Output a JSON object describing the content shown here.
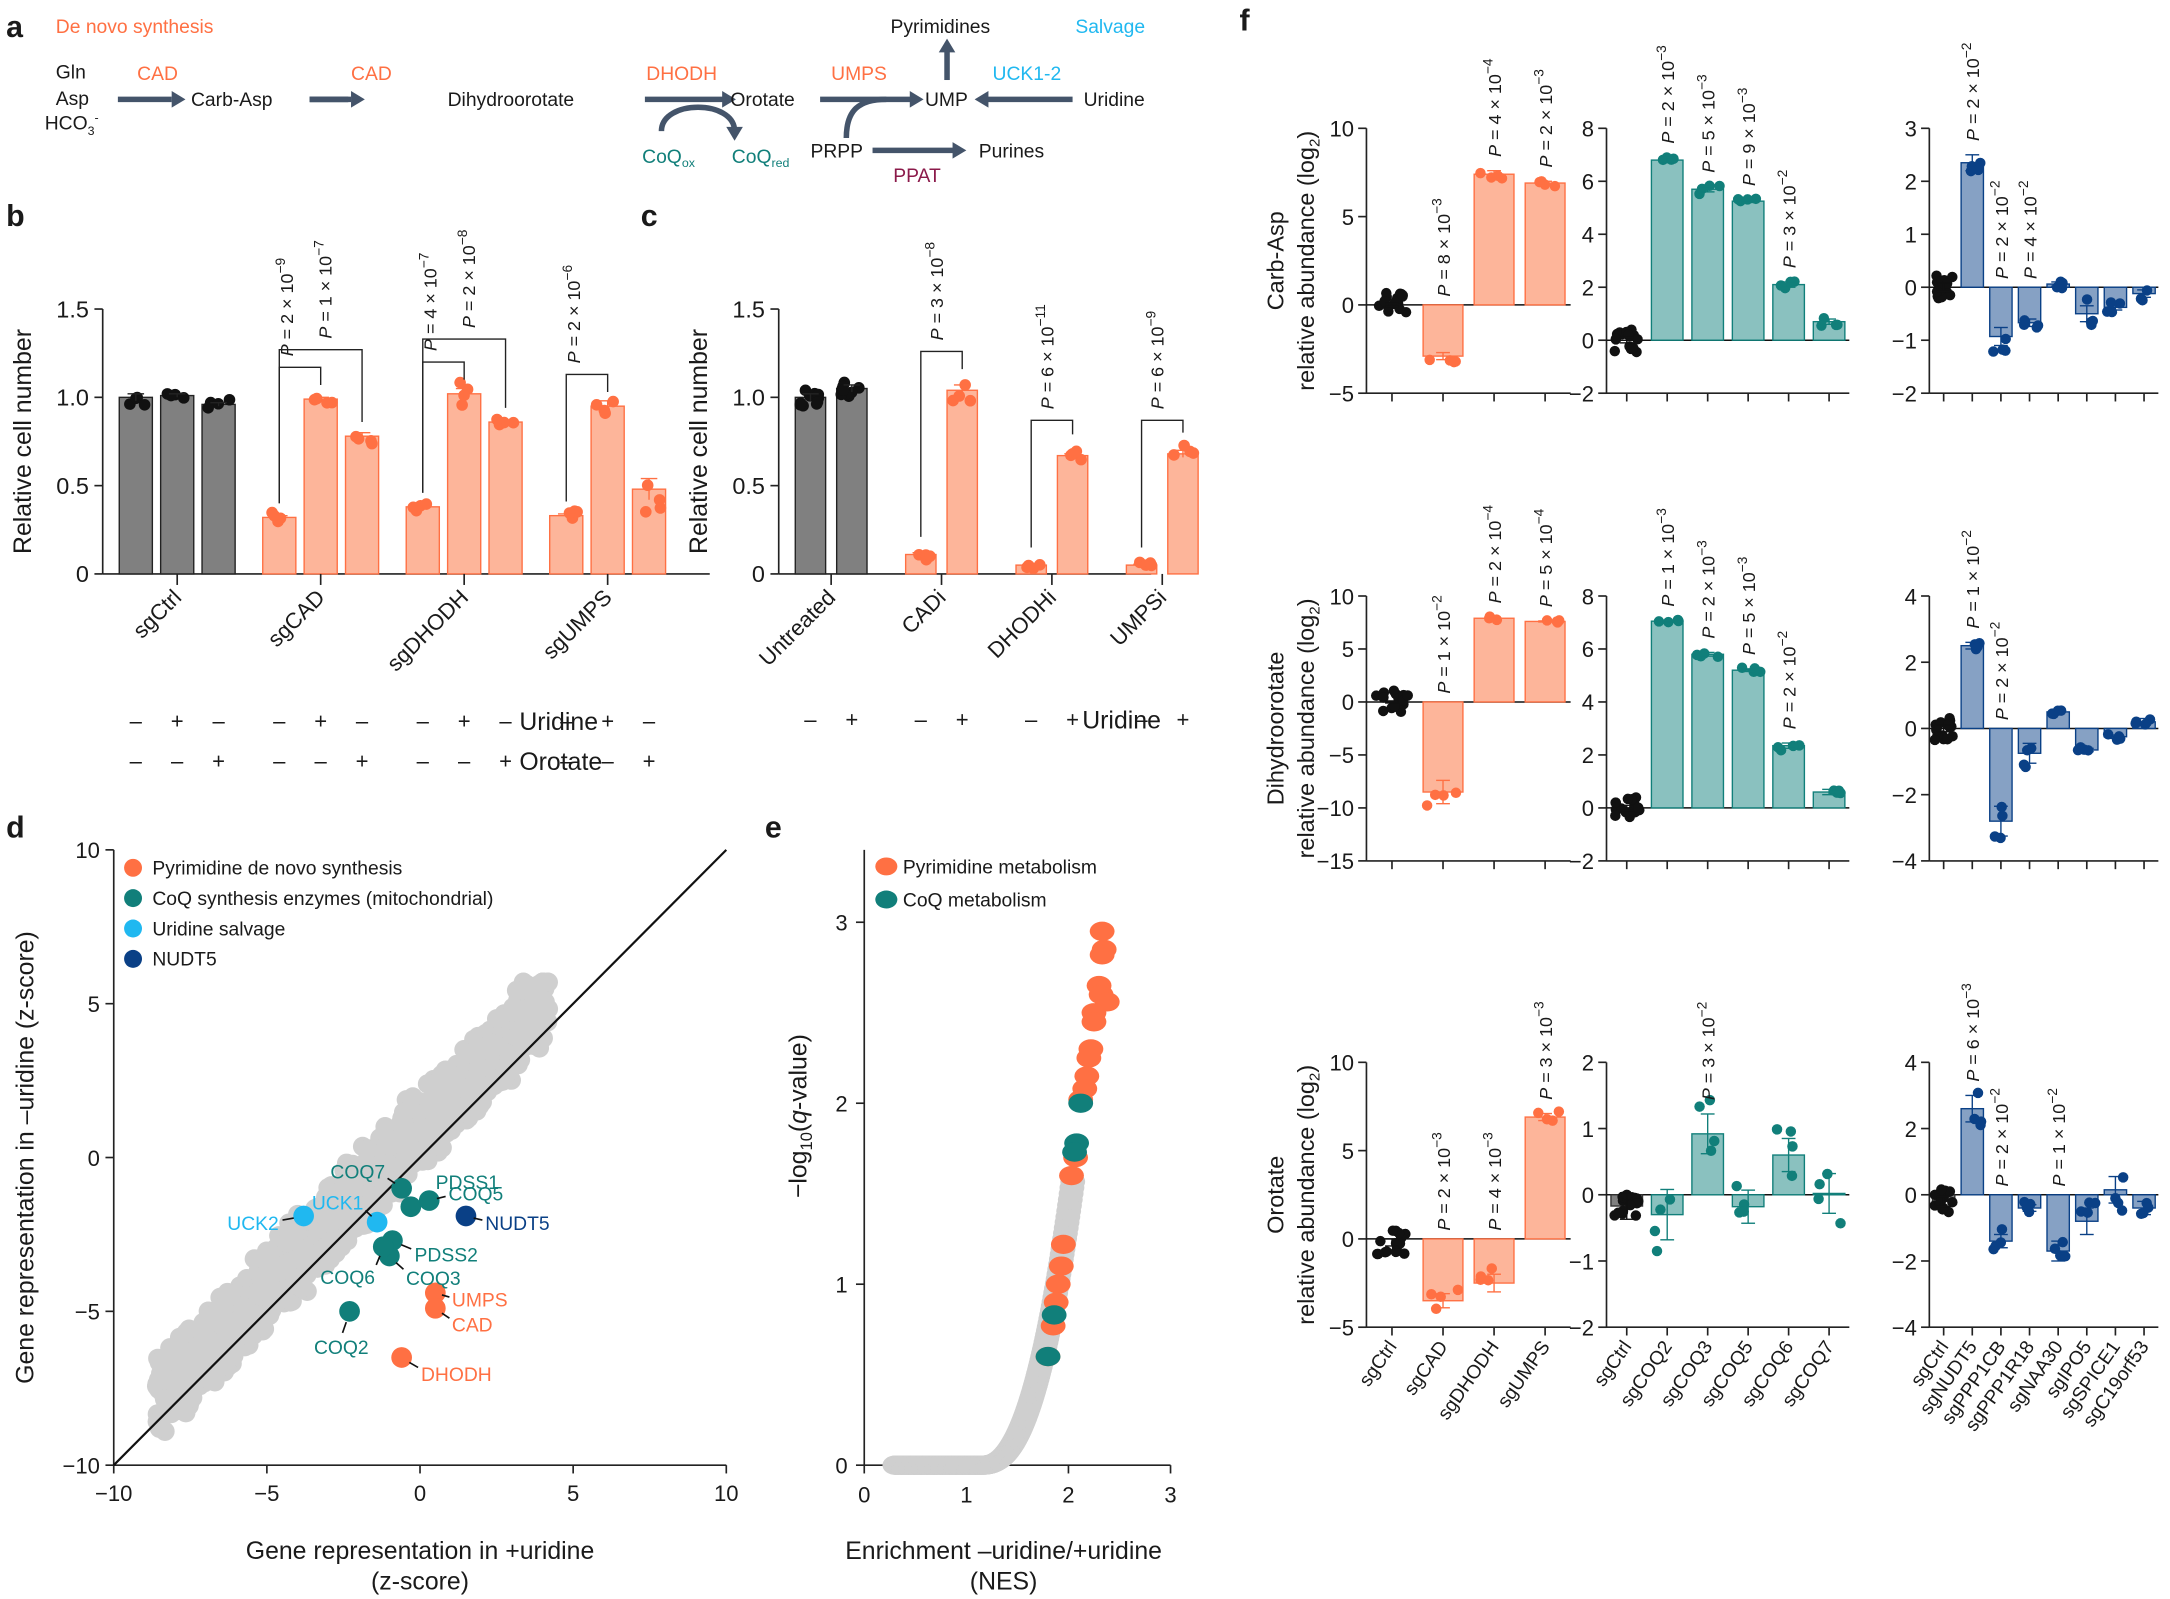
{
  "colors": {
    "orange": "#ff7043",
    "orange_fill": "#fdb59a",
    "teal": "#117f7a",
    "teal_fill": "#8ac1bf",
    "cyan": "#20b8f0",
    "navy": "#0a4086",
    "navy_fill": "#86a1c4",
    "gray_bar": "#808080",
    "gray_point": "#cfcfcf",
    "arrow": "#44546a",
    "ppat": "#8b1a4a"
  },
  "panel_a": {
    "letter": "a",
    "de_novo_label": "De novo synthesis",
    "salvage_label": "Salvage",
    "substrates": [
      "Gln",
      "Asp",
      "HCO3-"
    ],
    "metabolites": {
      "carb_asp": "Carb-Asp",
      "dihydroorotate": "Dihydroorotate",
      "orotate": "Orotate",
      "ump": "UMP",
      "uridine": "Uridine",
      "pyrimidines": "Pyrimidines",
      "prpp": "PRPP",
      "purines": "Purines",
      "coq_ox": "CoQox",
      "coq_red": "CoQred"
    },
    "enzymes": {
      "cad1": "CAD",
      "cad2": "CAD",
      "dhodh": "DHODH",
      "umps": "UMPS",
      "uck": "UCK1-2",
      "ppat": "PPAT"
    }
  },
  "chart_data": [
    {
      "id": "b",
      "type": "bar",
      "title": "",
      "ylabel": "Relative cell number",
      "ylim": [
        0,
        1.5
      ],
      "yticks": [
        "0",
        "0.5",
        "1.0",
        "1.5"
      ],
      "groups": [
        "sgCtrl",
        "sgCAD",
        "sgDHODH",
        "sgUMPS"
      ],
      "conditions_uridine": [
        "–",
        "+",
        "–"
      ],
      "conditions_orotate": [
        "–",
        "–",
        "+"
      ],
      "condition_labels": [
        "Uridine",
        "Orotate"
      ],
      "series": [
        {
          "name": "sgCtrl",
          "values": [
            1.0,
            1.01,
            0.96
          ],
          "errors": [
            0.02,
            0.01,
            0.01
          ],
          "color": "gray"
        },
        {
          "name": "sgCAD",
          "values": [
            0.32,
            0.99,
            0.78
          ],
          "errors": [
            0.01,
            0.01,
            0.02
          ],
          "color": "orange"
        },
        {
          "name": "sgDHODH",
          "values": [
            0.38,
            1.02,
            0.86
          ],
          "errors": [
            0.01,
            0.03,
            0.01
          ],
          "color": "orange"
        },
        {
          "name": "sgUMPS",
          "values": [
            0.33,
            0.95,
            0.48
          ],
          "errors": [
            0.01,
            0.03,
            0.06
          ],
          "color": "orange"
        }
      ],
      "pvalues": [
        {
          "group": 1,
          "from": 0,
          "to": 1,
          "text": "P = 2 × 10",
          "exp": "−9"
        },
        {
          "group": 1,
          "from": 0,
          "to": 2,
          "text": "P = 1 × 10",
          "exp": "−7"
        },
        {
          "group": 2,
          "from": 0,
          "to": 1,
          "text": "P = 4 × 10",
          "exp": "−7"
        },
        {
          "group": 2,
          "from": 0,
          "to": 2,
          "text": "P = 2 × 10",
          "exp": "−8"
        },
        {
          "group": 3,
          "from": 0,
          "to": 1,
          "text": "P = 2 × 10",
          "exp": "−6"
        }
      ]
    },
    {
      "id": "c",
      "type": "bar",
      "ylabel": "Relative cell number",
      "ylim": [
        0,
        1.5
      ],
      "yticks": [
        "0",
        "0.5",
        "1.0",
        "1.5"
      ],
      "groups": [
        "Untreated",
        "CADi",
        "DHODHi",
        "UMPSi"
      ],
      "conditions_uridine": [
        "–",
        "+"
      ],
      "condition_labels": [
        "Uridine"
      ],
      "series": [
        {
          "name": "Untreated",
          "values": [
            1.0,
            1.05
          ],
          "errors": [
            0.02,
            0.02
          ],
          "color": "gray"
        },
        {
          "name": "CADi",
          "values": [
            0.11,
            1.04
          ],
          "errors": [
            0.01,
            0.03
          ],
          "color": "orange"
        },
        {
          "name": "DHODHi",
          "values": [
            0.05,
            0.67
          ],
          "errors": [
            0.005,
            0.01
          ],
          "color": "orange"
        },
        {
          "name": "UMPSi",
          "values": [
            0.05,
            0.68
          ],
          "errors": [
            0.005,
            0.02
          ],
          "color": "orange"
        }
      ],
      "pvalues": [
        {
          "group": 1,
          "text": "P = 3 × 10",
          "exp": "−8"
        },
        {
          "group": 2,
          "text": "P = 6 × 10",
          "exp": "−11"
        },
        {
          "group": 3,
          "text": "P = 6 × 10",
          "exp": "−9"
        }
      ]
    },
    {
      "id": "d",
      "type": "scatter",
      "xlabel": "Gene representation in +uridine",
      "xlabel2": "(z-score)",
      "ylabel": "Gene representation in –uridine (z-score)",
      "xlim": [
        -10,
        10
      ],
      "ylim": [
        -10,
        10
      ],
      "xticks": [
        "−10",
        "−5",
        "0",
        "5",
        "10"
      ],
      "yticks": [
        "−10",
        "−5",
        "0",
        "5",
        "10"
      ],
      "legend": [
        {
          "label": "Pyrimidine de novo synthesis",
          "color": "orange"
        },
        {
          "label": "CoQ synthesis enzymes (mitochondrial)",
          "color": "teal"
        },
        {
          "label": "Uridine salvage",
          "color": "cyan"
        },
        {
          "label": "NUDT5",
          "color": "navy"
        }
      ],
      "legend_position": "top-left",
      "highlighted": [
        {
          "gene": "UMPS",
          "x": 0.5,
          "y": -4.4,
          "group": "orange"
        },
        {
          "gene": "CAD",
          "x": 0.5,
          "y": -4.9,
          "group": "orange"
        },
        {
          "gene": "DHODH",
          "x": -0.6,
          "y": -6.5,
          "group": "orange"
        },
        {
          "gene": "COQ7",
          "x": -0.6,
          "y": -1.0,
          "group": "teal"
        },
        {
          "gene": "PDSS1",
          "x": -0.3,
          "y": -1.6,
          "group": "teal"
        },
        {
          "gene": "COQ5",
          "x": 0.3,
          "y": -1.4,
          "group": "teal"
        },
        {
          "gene": "PDSS2",
          "x": -0.9,
          "y": -2.7,
          "group": "teal"
        },
        {
          "gene": "COQ3",
          "x": -1.0,
          "y": -3.2,
          "group": "teal"
        },
        {
          "gene": "COQ6",
          "x": -1.2,
          "y": -2.9,
          "group": "teal"
        },
        {
          "gene": "COQ2",
          "x": -2.3,
          "y": -5.0,
          "group": "teal"
        },
        {
          "gene": "UCK1",
          "x": -1.4,
          "y": -2.1,
          "group": "cyan"
        },
        {
          "gene": "UCK2",
          "x": -3.8,
          "y": -1.9,
          "group": "cyan"
        },
        {
          "gene": "NUDT5",
          "x": 1.5,
          "y": -1.9,
          "group": "navy"
        }
      ],
      "diagonal": "y = x"
    },
    {
      "id": "e",
      "type": "scatter",
      "xlabel": "Enrichment –uridine/+uridine",
      "xlabel2": "(NES)",
      "ylabel": "−log10(q-value)",
      "xlim": [
        0,
        3
      ],
      "ylim": [
        0,
        3.4
      ],
      "xticks": [
        "0",
        "1",
        "2",
        "3"
      ],
      "yticks": [
        "0",
        "1",
        "2",
        "3"
      ],
      "legend": [
        {
          "label": "Pyrimidine metabolism",
          "color": "orange"
        },
        {
          "label": "CoQ metabolism",
          "color": "teal"
        }
      ],
      "legend_position": "top-left",
      "orange_points": [
        [
          2.33,
          2.95
        ],
        [
          2.35,
          2.85
        ],
        [
          2.33,
          2.82
        ],
        [
          2.3,
          2.65
        ],
        [
          2.32,
          2.6
        ],
        [
          2.38,
          2.56
        ],
        [
          2.25,
          2.5
        ],
        [
          2.25,
          2.45
        ],
        [
          2.22,
          2.3
        ],
        [
          2.2,
          2.25
        ],
        [
          2.18,
          2.15
        ],
        [
          2.16,
          2.08
        ],
        [
          2.12,
          2.02
        ],
        [
          2.07,
          1.7
        ],
        [
          2.03,
          1.6
        ],
        [
          1.95,
          1.22
        ],
        [
          1.93,
          1.1
        ],
        [
          1.9,
          1.0
        ],
        [
          1.88,
          0.9
        ],
        [
          1.85,
          0.77
        ],
        [
          1.8,
          0.6
        ]
      ],
      "teal_points": [
        [
          2.12,
          2.0
        ],
        [
          2.08,
          1.78
        ],
        [
          2.06,
          1.73
        ],
        [
          1.86,
          0.83
        ],
        [
          1.8,
          0.6
        ]
      ]
    },
    {
      "id": "f",
      "type": "bar",
      "rows": [
        {
          "ylabel": "Carb-Asp",
          "ylabel2": "relative abundance (log2)",
          "panels": [
            {
              "ylim": [
                -5,
                10
              ],
              "yticks": [
                -5,
                0,
                5,
                10
              ],
              "color": "orange",
              "categories": [
                "sgCtrl",
                "sgCAD",
                "sgDHODH",
                "sgUMPS"
              ],
              "values": [
                0,
                -2.9,
                7.4,
                6.9
              ],
              "errors": [
                0.1,
                0.2,
                0.2,
                0.1
              ],
              "pvalues": [
                "",
                "P = 8 × 10|−3",
                "P = 4 × 10|−4",
                "P = 2 × 10|−3"
              ]
            },
            {
              "ylim": [
                -2,
                8
              ],
              "yticks": [
                -2,
                0,
                2,
                4,
                6,
                8
              ],
              "color": "teal",
              "categories": [
                "sgCtrl",
                "sgCOQ2",
                "sgCOQ3",
                "sgCOQ5",
                "sgCOQ6",
                "sgCOQ7"
              ],
              "values": [
                0,
                6.8,
                5.7,
                5.25,
                2.1,
                0.7
              ],
              "errors": [
                0.1,
                0.1,
                0.1,
                0.05,
                0.1,
                0.1
              ],
              "pvalues": [
                "",
                "P = 2 × 10|−3",
                "P = 5 × 10|−3",
                "P = 9 × 10|−3",
                "P = 3 × 10|−2",
                ""
              ]
            },
            {
              "ylim": [
                -2,
                3
              ],
              "yticks": [
                -2,
                -1,
                0,
                1,
                2,
                3
              ],
              "color": "navy",
              "categories": [
                "sgCtrl",
                "sgNUDT5",
                "sgPPP1CB",
                "sgPPP1R18",
                "sgNAA30",
                "sgIPO5",
                "sgSPICE1",
                "sgC19orf53"
              ],
              "values": [
                0,
                2.35,
                -0.93,
                -0.67,
                0.06,
                -0.5,
                -0.38,
                -0.12
              ],
              "errors": [
                0.08,
                0.15,
                0.17,
                0.07,
                0.04,
                0.15,
                0.05,
                0.07
              ],
              "pvalues": [
                "",
                "P = 2 × 10|−2",
                "P = 2 × 10|−2",
                "P = 4 × 10|−2",
                "",
                "",
                "",
                ""
              ]
            }
          ]
        },
        {
          "ylabel": "Dihydroorotate",
          "ylabel2": "relative abundance (log2)",
          "panels": [
            {
              "ylim": [
                -15,
                10
              ],
              "yticks": [
                -15,
                -10,
                -5,
                0,
                5,
                10
              ],
              "color": "orange",
              "categories": [
                "sgCtrl",
                "sgCAD",
                "sgDHODH",
                "sgUMPS"
              ],
              "values": [
                0,
                -8.5,
                7.9,
                7.6
              ],
              "errors": [
                0.1,
                1.1,
                0.1,
                0.05
              ],
              "pvalues": [
                "",
                "P = 1 × 10|−2",
                "P = 2 × 10|−4",
                "P = 5 × 10|−4"
              ]
            },
            {
              "ylim": [
                -2,
                8
              ],
              "yticks": [
                -2,
                0,
                2,
                4,
                6,
                8
              ],
              "color": "teal",
              "categories": [
                "sgCtrl",
                "sgCOQ2",
                "sgCOQ3",
                "sgCOQ5",
                "sgCOQ6",
                "sgCOQ7"
              ],
              "values": [
                0,
                7.05,
                5.8,
                5.2,
                2.35,
                0.6
              ],
              "errors": [
                0.1,
                0.03,
                0.07,
                0.05,
                0.1,
                0.1
              ],
              "pvalues": [
                "",
                "P = 1 × 10|−3",
                "P = 2 × 10|−3",
                "P = 5 × 10|−3",
                "P = 2 × 10|−2",
                ""
              ]
            },
            {
              "ylim": [
                -4,
                4
              ],
              "yticks": [
                -4,
                -2,
                0,
                2,
                4
              ],
              "color": "navy",
              "categories": [
                "sgCtrl",
                "sgNUDT5",
                "sgPPP1CB",
                "sgPPP1R18",
                "sgNAA30",
                "sgIPO5",
                "sgSPICE1",
                "sgC19orf53"
              ],
              "values": [
                0,
                2.5,
                -2.8,
                -0.75,
                0.5,
                -0.65,
                -0.25,
                0.2
              ],
              "errors": [
                0.1,
                0.1,
                0.45,
                0.3,
                0.05,
                0.05,
                0.05,
                0.1
              ],
              "pvalues": [
                "",
                "P = 1 × 10|−2",
                "P = 2 × 10|−2",
                "",
                "",
                "",
                "",
                ""
              ]
            }
          ]
        },
        {
          "ylabel": "Orotate",
          "ylabel2": "relative abundance (log2)",
          "panels": [
            {
              "ylim": [
                -5,
                10
              ],
              "yticks": [
                -5,
                0,
                5,
                10
              ],
              "color": "orange",
              "categories": [
                "sgCtrl",
                "sgCAD",
                "sgDHODH",
                "sgUMPS"
              ],
              "values": [
                -0.2,
                -3.5,
                -2.5,
                6.9
              ],
              "errors": [
                0.2,
                0.4,
                0.5,
                0.2
              ],
              "pvalues": [
                "",
                "P = 2 × 10|−3",
                "P = 4 × 10|−3",
                "P = 3 × 10|−3"
              ]
            },
            {
              "ylim": [
                -2,
                2
              ],
              "yticks": [
                -2,
                -1,
                0,
                1,
                2
              ],
              "color": "teal",
              "categories": [
                "sgCtrl",
                "sgCOQ2",
                "sgCOQ3",
                "sgCOQ5",
                "sgCOQ6",
                "sgCOQ7"
              ],
              "values": [
                -0.17,
                -0.3,
                0.92,
                -0.18,
                0.6,
                0.02
              ],
              "errors": [
                0.2,
                0.38,
                0.3,
                0.25,
                0.25,
                0.3
              ],
              "pvalues": [
                "",
                "",
                "P = 3 × 10|−2",
                "",
                "",
                ""
              ]
            },
            {
              "ylim": [
                -4,
                4
              ],
              "yticks": [
                -4,
                -2,
                0,
                2,
                4
              ],
              "color": "navy",
              "categories": [
                "sgCtrl",
                "sgNUDT5",
                "sgPPP1CB",
                "sgPPP1R18",
                "sgNAA30",
                "sgIPO5",
                "sgSPICE1",
                "sgC19orf53"
              ],
              "values": [
                -0.2,
                2.6,
                -1.4,
                -0.4,
                -1.7,
                -0.8,
                0.15,
                -0.4
              ],
              "errors": [
                0.15,
                0.4,
                0.2,
                0.1,
                0.3,
                0.4,
                0.4,
                0.2
              ],
              "pvalues": [
                "",
                "P = 6 × 10|−3",
                "P = 2 × 10|−2",
                "",
                "P = 1 × 10|−2",
                "",
                "",
                ""
              ]
            }
          ]
        }
      ]
    }
  ],
  "labels": {
    "b": "b",
    "c": "c",
    "d": "d",
    "e": "e",
    "f": "f"
  }
}
